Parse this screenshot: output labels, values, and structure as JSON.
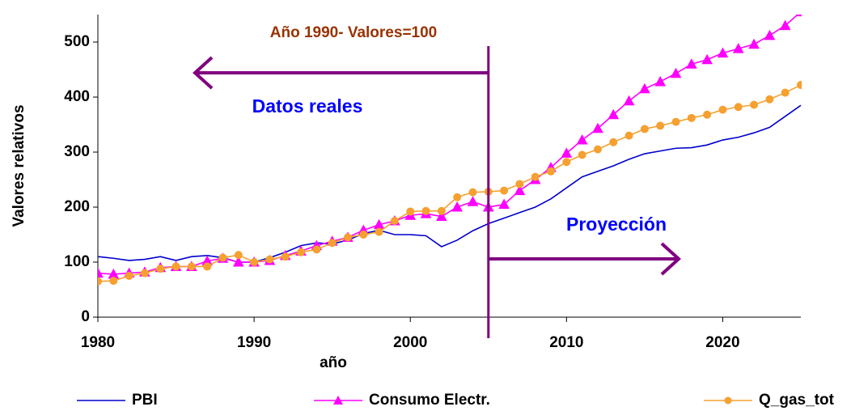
{
  "chart_data": {
    "type": "line",
    "annotations": {
      "base": "Año 1990- Valores=100",
      "real": "Datos reales",
      "projection": "Proyección"
    },
    "projection_start": 2005,
    "xlabel": "año",
    "ylabel": "Valores relativos",
    "x": [
      1980,
      1981,
      1982,
      1983,
      1984,
      1985,
      1986,
      1987,
      1988,
      1989,
      1990,
      1991,
      1992,
      1993,
      1994,
      1995,
      1996,
      1997,
      1998,
      1999,
      2000,
      2001,
      2002,
      2003,
      2004,
      2005,
      2006,
      2007,
      2008,
      2009,
      2010,
      2011,
      2012,
      2013,
      2014,
      2015,
      2016,
      2017,
      2018,
      2019,
      2020,
      2021,
      2022,
      2023,
      2024,
      2025
    ],
    "series": [
      {
        "name": "PBI",
        "color": "#0000cc",
        "marker": "none",
        "values": [
          110,
          107,
          103,
          105,
          110,
          103,
          110,
          112,
          108,
          100,
          100,
          108,
          118,
          130,
          135,
          133,
          140,
          152,
          158,
          150,
          150,
          148,
          128,
          140,
          157,
          170,
          180,
          190,
          200,
          215,
          235,
          255,
          265,
          275,
          287,
          297,
          302,
          307,
          308,
          313,
          322,
          327,
          335,
          345,
          365,
          385
        ]
      },
      {
        "name": "Consumo Electr.",
        "color": "#ff00ff",
        "marker": "triangle",
        "values": [
          80,
          78,
          80,
          82,
          90,
          92,
          92,
          102,
          107,
          100,
          100,
          103,
          112,
          120,
          130,
          138,
          145,
          158,
          168,
          175,
          185,
          188,
          183,
          200,
          210,
          200,
          205,
          230,
          250,
          272,
          298,
          322,
          343,
          368,
          393,
          415,
          428,
          443,
          460,
          468,
          480,
          488,
          496,
          512,
          530,
          555
        ]
      },
      {
        "name": "Q_gas_tot",
        "color": "#f5a030",
        "marker": "circle",
        "values": [
          65,
          66,
          75,
          80,
          88,
          92,
          92,
          92,
          108,
          113,
          100,
          105,
          110,
          118,
          123,
          135,
          145,
          150,
          155,
          175,
          192,
          193,
          193,
          218,
          227,
          228,
          230,
          242,
          255,
          265,
          282,
          295,
          305,
          318,
          330,
          342,
          348,
          355,
          362,
          368,
          377,
          382,
          386,
          396,
          408,
          422
        ]
      }
    ],
    "xlim": [
      1980,
      2025
    ],
    "xticks": [
      1980,
      1990,
      2000,
      2010,
      2020
    ],
    "ylim": [
      0,
      550
    ],
    "yticks": [
      0,
      100,
      200,
      300,
      400,
      500
    ],
    "grid": false
  }
}
